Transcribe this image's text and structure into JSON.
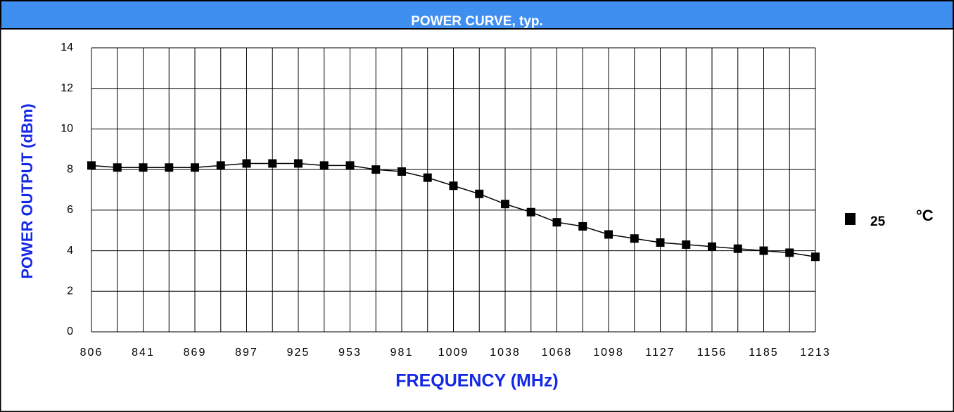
{
  "chart_data": {
    "type": "line",
    "title": "POWER CURVE, typ.",
    "xlabel": "FREQUENCY (MHz)",
    "ylabel": "POWER OUTPUT (dBm)",
    "categories": [
      "806",
      null,
      "841",
      null,
      "869",
      null,
      "897",
      null,
      "925",
      null,
      "953",
      null,
      "981",
      null,
      "1009",
      null,
      "1038",
      null,
      "1068",
      null,
      "1098",
      null,
      "1127",
      null,
      "1156",
      null,
      "1185",
      null,
      "1213"
    ],
    "series": [
      {
        "name": "25",
        "color": "#000000",
        "values": [
          8.2,
          8.1,
          8.1,
          8.1,
          8.1,
          8.2,
          8.3,
          8.3,
          8.3,
          8.2,
          8.2,
          8.0,
          7.9,
          7.6,
          7.2,
          6.8,
          6.3,
          5.9,
          5.4,
          5.2,
          4.8,
          4.6,
          4.4,
          4.3,
          4.2,
          4.1,
          4.0,
          3.9,
          3.7
        ]
      }
    ],
    "legend_unit": "°C",
    "ylim": [
      0,
      14
    ],
    "yticks": [
      0,
      2,
      4,
      6,
      8,
      10,
      12,
      14
    ],
    "grid": true
  }
}
